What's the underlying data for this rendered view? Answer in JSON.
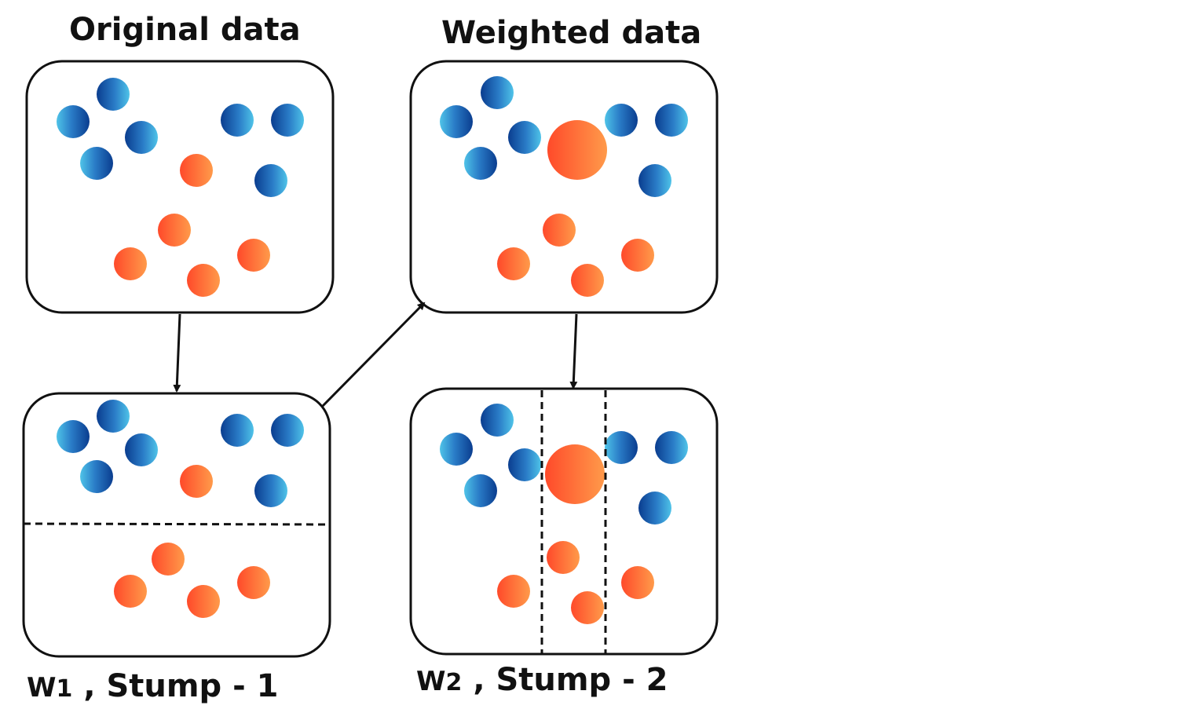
{
  "titles": {
    "original": "Original data",
    "weighted": "Weighted data"
  },
  "captions": {
    "stump1": {
      "w": "W",
      "sub": "1",
      "rest": " , Stump - 1"
    },
    "stump2": {
      "w": "W",
      "sub": "2",
      "rest": " , Stump - 2"
    }
  },
  "colors": {
    "blue_dark": "#0a3d8f",
    "blue_light": "#4fc3e8",
    "orange_dark": "#ff4a2a",
    "orange_light": "#ff9a4a",
    "stroke": "#111111"
  }
}
